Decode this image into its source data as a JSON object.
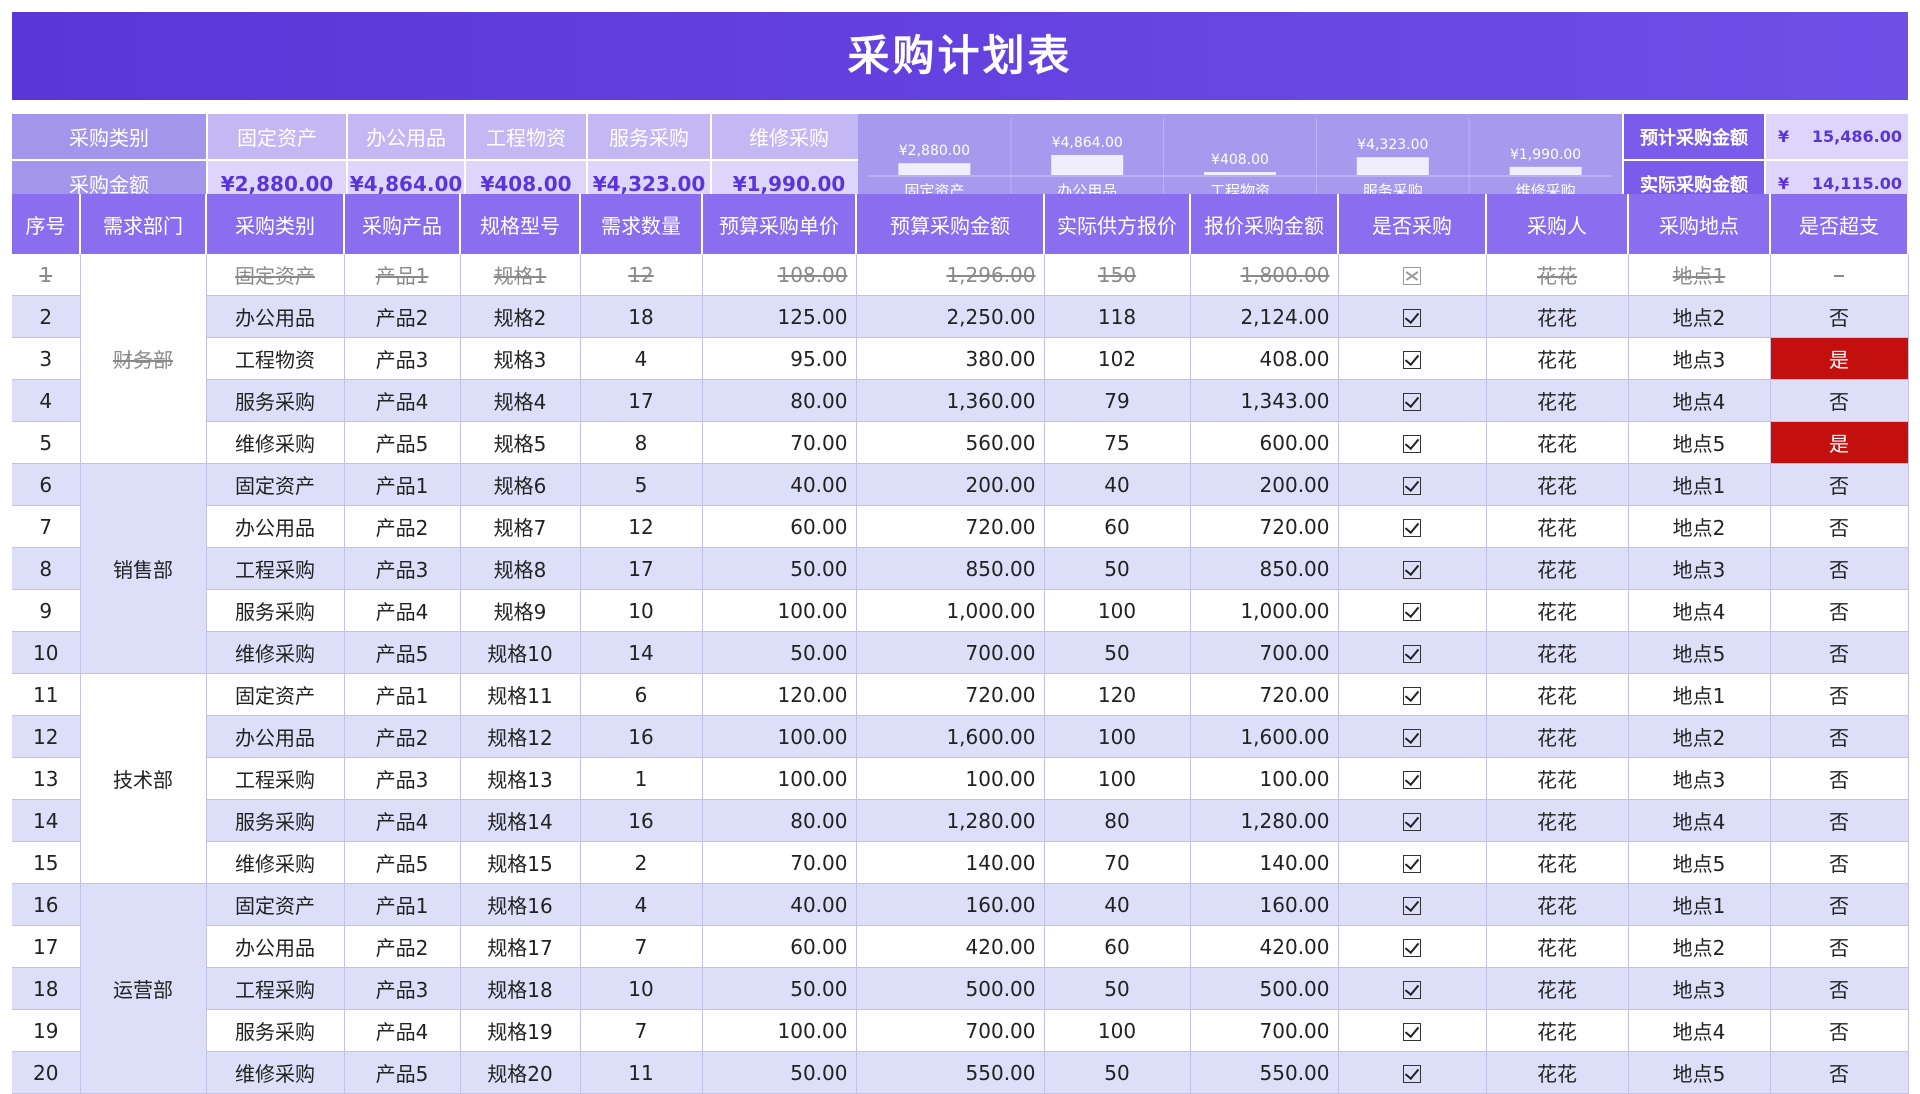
{
  "title": "采购计划表",
  "summary": {
    "category_label": "采购类别",
    "amount_label": "采购金额",
    "categories": [
      "固定资产",
      "办公用品",
      "工程物资",
      "服务采购",
      "维修采购"
    ],
    "amounts": [
      "¥2,880.00",
      "¥4,864.00",
      "¥408.00",
      "¥4,323.00",
      "¥1,990.00"
    ],
    "budget_label": "预计采购金额",
    "budget_currency": "¥",
    "budget_value": "15,486.00",
    "actual_label": "实际采购金额",
    "actual_currency": "¥",
    "actual_value": "14,115.00"
  },
  "chart_data": {
    "type": "bar",
    "categories": [
      "固定资产",
      "办公用品",
      "工程物资",
      "服务采购",
      "维修采购"
    ],
    "values": [
      2880,
      4864,
      408,
      4323,
      1990
    ],
    "data_labels": [
      "¥2,880.00",
      "¥4,864.00",
      "¥408.00",
      "¥4,323.00",
      "¥1,990.00"
    ],
    "bar_color": "#f0eefc",
    "grid": false
  },
  "table": {
    "headers": [
      "序号",
      "需求部门",
      "采购类别",
      "采购产品",
      "规格型号",
      "需求数量",
      "预算采购单价",
      "预算采购金额",
      "实际供方报价",
      "报价采购金额",
      "是否采购",
      "采购人",
      "采购地点",
      "是否超支"
    ],
    "departments": [
      {
        "name": "财务部",
        "rows": 5
      },
      {
        "name": "销售部",
        "rows": 5
      },
      {
        "name": "技术部",
        "rows": 5
      },
      {
        "name": "运营部",
        "rows": 5
      }
    ],
    "rows": [
      {
        "no": "1",
        "cat": "固定资产",
        "prod": "产品1",
        "spec": "规格1",
        "qty": "12",
        "unit": "108.00",
        "budget": "1,296.00",
        "quote": "150",
        "qamt": "1,800.00",
        "buy": false,
        "buyer": "花花",
        "loc": "地点1",
        "over": "–",
        "strike": true
      },
      {
        "no": "2",
        "cat": "办公用品",
        "prod": "产品2",
        "spec": "规格2",
        "qty": "18",
        "unit": "125.00",
        "budget": "2,250.00",
        "quote": "118",
        "qamt": "2,124.00",
        "buy": true,
        "buyer": "花花",
        "loc": "地点2",
        "over": "否"
      },
      {
        "no": "3",
        "cat": "工程物资",
        "prod": "产品3",
        "spec": "规格3",
        "qty": "4",
        "unit": "95.00",
        "budget": "380.00",
        "quote": "102",
        "qamt": "408.00",
        "buy": true,
        "buyer": "花花",
        "loc": "地点3",
        "over": "是"
      },
      {
        "no": "4",
        "cat": "服务采购",
        "prod": "产品4",
        "spec": "规格4",
        "qty": "17",
        "unit": "80.00",
        "budget": "1,360.00",
        "quote": "79",
        "qamt": "1,343.00",
        "buy": true,
        "buyer": "花花",
        "loc": "地点4",
        "over": "否"
      },
      {
        "no": "5",
        "cat": "维修采购",
        "prod": "产品5",
        "spec": "规格5",
        "qty": "8",
        "unit": "70.00",
        "budget": "560.00",
        "quote": "75",
        "qamt": "600.00",
        "buy": true,
        "buyer": "花花",
        "loc": "地点5",
        "over": "是"
      },
      {
        "no": "6",
        "cat": "固定资产",
        "prod": "产品1",
        "spec": "规格6",
        "qty": "5",
        "unit": "40.00",
        "budget": "200.00",
        "quote": "40",
        "qamt": "200.00",
        "buy": true,
        "buyer": "花花",
        "loc": "地点1",
        "over": "否"
      },
      {
        "no": "7",
        "cat": "办公用品",
        "prod": "产品2",
        "spec": "规格7",
        "qty": "12",
        "unit": "60.00",
        "budget": "720.00",
        "quote": "60",
        "qamt": "720.00",
        "buy": true,
        "buyer": "花花",
        "loc": "地点2",
        "over": "否"
      },
      {
        "no": "8",
        "cat": "工程采购",
        "prod": "产品3",
        "spec": "规格8",
        "qty": "17",
        "unit": "50.00",
        "budget": "850.00",
        "quote": "50",
        "qamt": "850.00",
        "buy": true,
        "buyer": "花花",
        "loc": "地点3",
        "over": "否"
      },
      {
        "no": "9",
        "cat": "服务采购",
        "prod": "产品4",
        "spec": "规格9",
        "qty": "10",
        "unit": "100.00",
        "budget": "1,000.00",
        "quote": "100",
        "qamt": "1,000.00",
        "buy": true,
        "buyer": "花花",
        "loc": "地点4",
        "over": "否"
      },
      {
        "no": "10",
        "cat": "维修采购",
        "prod": "产品5",
        "spec": "规格10",
        "qty": "14",
        "unit": "50.00",
        "budget": "700.00",
        "quote": "50",
        "qamt": "700.00",
        "buy": true,
        "buyer": "花花",
        "loc": "地点5",
        "over": "否"
      },
      {
        "no": "11",
        "cat": "固定资产",
        "prod": "产品1",
        "spec": "规格11",
        "qty": "6",
        "unit": "120.00",
        "budget": "720.00",
        "quote": "120",
        "qamt": "720.00",
        "buy": true,
        "buyer": "花花",
        "loc": "地点1",
        "over": "否"
      },
      {
        "no": "12",
        "cat": "办公用品",
        "prod": "产品2",
        "spec": "规格12",
        "qty": "16",
        "unit": "100.00",
        "budget": "1,600.00",
        "quote": "100",
        "qamt": "1,600.00",
        "buy": true,
        "buyer": "花花",
        "loc": "地点2",
        "over": "否"
      },
      {
        "no": "13",
        "cat": "工程采购",
        "prod": "产品3",
        "spec": "规格13",
        "qty": "1",
        "unit": "100.00",
        "budget": "100.00",
        "quote": "100",
        "qamt": "100.00",
        "buy": true,
        "buyer": "花花",
        "loc": "地点3",
        "over": "否"
      },
      {
        "no": "14",
        "cat": "服务采购",
        "prod": "产品4",
        "spec": "规格14",
        "qty": "16",
        "unit": "80.00",
        "budget": "1,280.00",
        "quote": "80",
        "qamt": "1,280.00",
        "buy": true,
        "buyer": "花花",
        "loc": "地点4",
        "over": "否"
      },
      {
        "no": "15",
        "cat": "维修采购",
        "prod": "产品5",
        "spec": "规格15",
        "qty": "2",
        "unit": "70.00",
        "budget": "140.00",
        "quote": "70",
        "qamt": "140.00",
        "buy": true,
        "buyer": "花花",
        "loc": "地点5",
        "over": "否"
      },
      {
        "no": "16",
        "cat": "固定资产",
        "prod": "产品1",
        "spec": "规格16",
        "qty": "4",
        "unit": "40.00",
        "budget": "160.00",
        "quote": "40",
        "qamt": "160.00",
        "buy": true,
        "buyer": "花花",
        "loc": "地点1",
        "over": "否"
      },
      {
        "no": "17",
        "cat": "办公用品",
        "prod": "产品2",
        "spec": "规格17",
        "qty": "7",
        "unit": "60.00",
        "budget": "420.00",
        "quote": "60",
        "qamt": "420.00",
        "buy": true,
        "buyer": "花花",
        "loc": "地点2",
        "over": "否"
      },
      {
        "no": "18",
        "cat": "工程采购",
        "prod": "产品3",
        "spec": "规格18",
        "qty": "10",
        "unit": "50.00",
        "budget": "500.00",
        "quote": "50",
        "qamt": "500.00",
        "buy": true,
        "buyer": "花花",
        "loc": "地点3",
        "over": "否"
      },
      {
        "no": "19",
        "cat": "服务采购",
        "prod": "产品4",
        "spec": "规格19",
        "qty": "7",
        "unit": "100.00",
        "budget": "700.00",
        "quote": "100",
        "qamt": "700.00",
        "buy": true,
        "buyer": "花花",
        "loc": "地点4",
        "over": "否"
      },
      {
        "no": "20",
        "cat": "维修采购",
        "prod": "产品5",
        "spec": "规格20",
        "qty": "11",
        "unit": "50.00",
        "budget": "550.00",
        "quote": "50",
        "qamt": "550.00",
        "buy": true,
        "buyer": "花花",
        "loc": "地点5",
        "over": "否"
      }
    ]
  },
  "colors": {
    "header_purple": "#5a35d8",
    "over_budget_red": "#c40f0f",
    "row_alt": "#dcdff7"
  }
}
